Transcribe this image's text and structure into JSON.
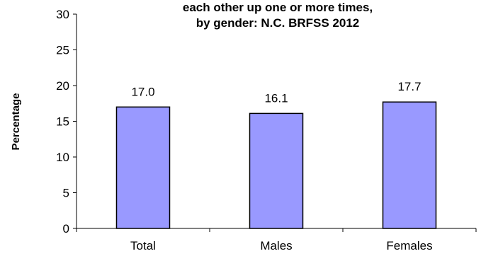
{
  "chart_data": {
    "type": "bar",
    "title_lines": [
      "each other up one or more times,",
      "by gender: N.C. BRFSS 2012"
    ],
    "xlabel": "",
    "ylabel": "Percentage",
    "categories": [
      "Total",
      "Males",
      "Females"
    ],
    "values": [
      17.0,
      16.1,
      17.7
    ],
    "data_labels": [
      "17.0",
      "16.1",
      "17.7"
    ],
    "ylim": [
      0,
      30
    ],
    "yticks": [
      0,
      5,
      10,
      15,
      20,
      25,
      30
    ],
    "grid": false,
    "legend": "none",
    "colors": {
      "bar_fill": "#9999FF",
      "bar_stroke": "#000000",
      "axis": "#000000"
    }
  }
}
